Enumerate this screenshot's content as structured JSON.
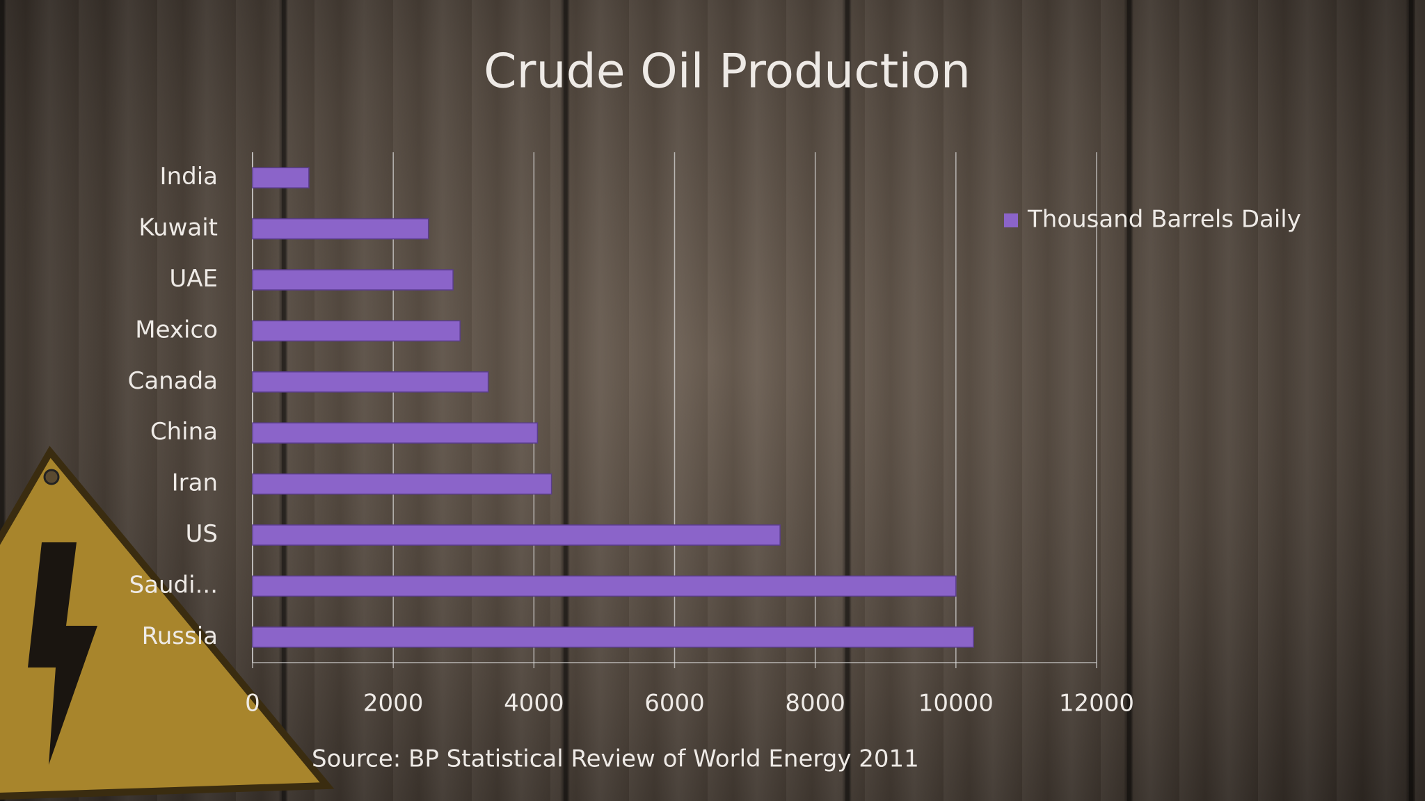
{
  "chart_data": {
    "type": "bar",
    "orientation": "horizontal",
    "title": "Crude Oil  Production",
    "source": "Source: BP  Statistical Review of World Energy  2011",
    "categories": [
      "India",
      "Kuwait",
      "UAE",
      "Mexico",
      "Canada",
      "China",
      "Iran",
      "US",
      "Saudi...",
      "Russia"
    ],
    "series": [
      {
        "name": "Thousand Barrels Daily",
        "color": "#8b64c9",
        "values": [
          800,
          2500,
          2850,
          2950,
          3350,
          4050,
          4250,
          7500,
          10000,
          10250
        ]
      }
    ],
    "xlim": [
      0,
      12000
    ],
    "xticks": [
      0,
      2000,
      4000,
      6000,
      8000,
      10000,
      12000
    ],
    "grid": true,
    "legend": "right"
  }
}
